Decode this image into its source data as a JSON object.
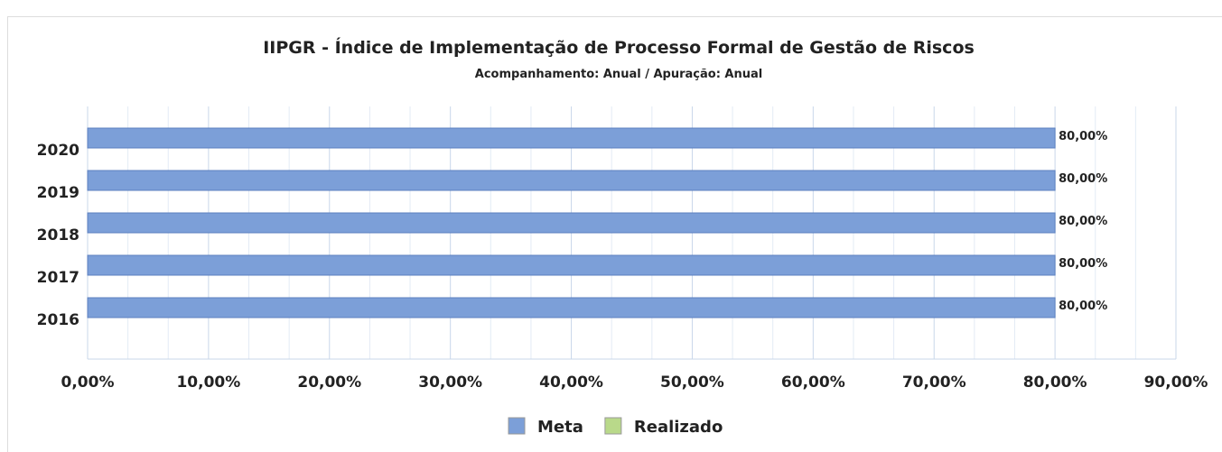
{
  "chart_data": {
    "type": "hbar",
    "title": "IIPGR - Índice de Implementação de Processo Formal de Gestão de Riscos",
    "subtitle": "Acompanhamento: Anual /  Apuração: Anual",
    "categories": [
      "2020",
      "2019",
      "2018",
      "2017",
      "2016"
    ],
    "series": [
      {
        "name": "Meta",
        "color": "#7c9fd8",
        "values": [
          80,
          80,
          80,
          80,
          80
        ],
        "value_labels": [
          "80,00%",
          "80,00%",
          "80,00%",
          "80,00%",
          "80,00%"
        ]
      },
      {
        "name": "Realizado",
        "color": "#b9d98a",
        "values": [
          null,
          null,
          null,
          null,
          null
        ]
      }
    ],
    "xlim": [
      0,
      90
    ],
    "xticks": [
      {
        "value": 0,
        "label": "0,00%"
      },
      {
        "value": 10,
        "label": "10,00%"
      },
      {
        "value": 20,
        "label": "20,00%"
      },
      {
        "value": 30,
        "label": "30,00%"
      },
      {
        "value": 40,
        "label": "40,00%"
      },
      {
        "value": 50,
        "label": "50,00%"
      },
      {
        "value": 60,
        "label": "60,00%"
      },
      {
        "value": 70,
        "label": "70,00%"
      },
      {
        "value": 80,
        "label": "80,00%"
      },
      {
        "value": 90,
        "label": "90,00%"
      }
    ],
    "grid": true
  }
}
